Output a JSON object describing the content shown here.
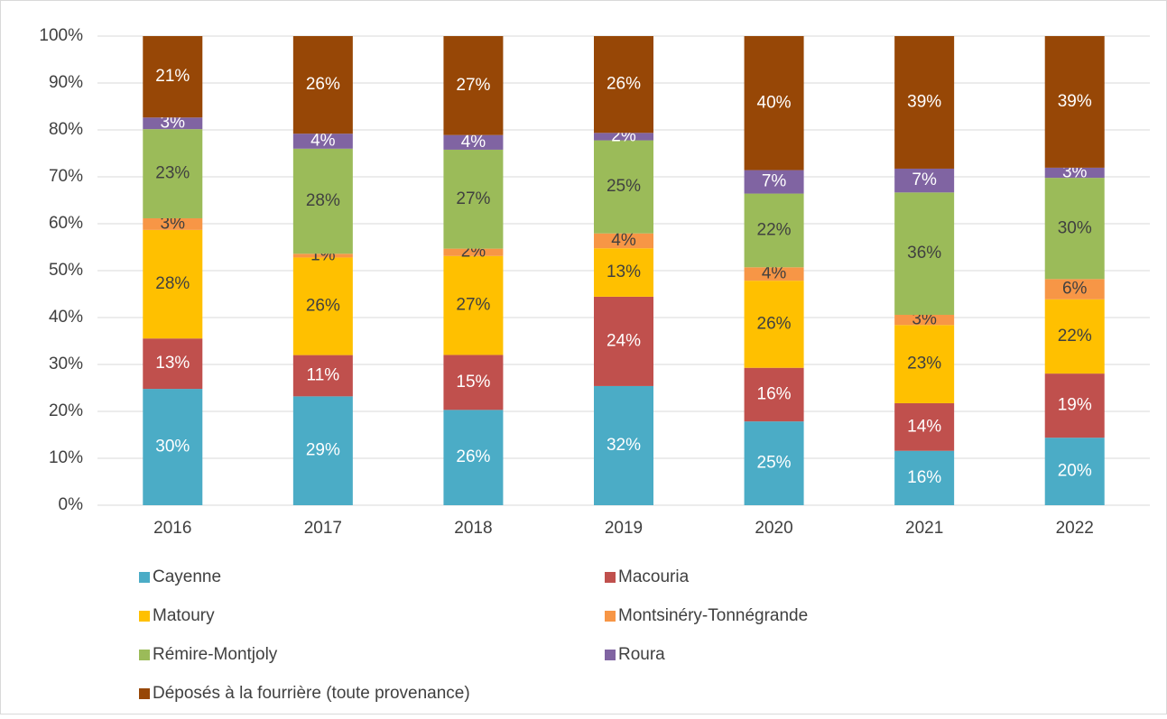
{
  "chart_data": {
    "type": "bar",
    "stacking": "percent",
    "categories": [
      "2016",
      "2017",
      "2018",
      "2019",
      "2020",
      "2021",
      "2022"
    ],
    "series": [
      {
        "name": "Cayenne",
        "color": "#4bacc6",
        "label_color": "#ffffff",
        "values": [
          30,
          29,
          26,
          32,
          25,
          16,
          20
        ],
        "value_labels": [
          "30%",
          "29%",
          "26%",
          "32%",
          "25%",
          "16%",
          "20%"
        ]
      },
      {
        "name": "Macouria",
        "color": "#c0504d",
        "label_color": "#ffffff",
        "values": [
          13,
          11,
          15,
          24,
          16,
          14,
          19
        ],
        "value_labels": [
          "13%",
          "11%",
          "15%",
          "24%",
          "16%",
          "14%",
          "19%"
        ]
      },
      {
        "name": "Matoury",
        "color": "#ffc000",
        "label_color": "#404040",
        "values": [
          28,
          26,
          27,
          13,
          26,
          23,
          22
        ],
        "value_labels": [
          "28%",
          "26%",
          "27%",
          "13%",
          "26%",
          "23%",
          "22%"
        ]
      },
      {
        "name": "Montsinéry-Tonnégrande",
        "color": "#f79646",
        "label_color": "#404040",
        "values": [
          3,
          1,
          2,
          4,
          4,
          3,
          6
        ],
        "value_labels": [
          "3%",
          "1%",
          "2%",
          "4%",
          "4%",
          "3%",
          "6%"
        ]
      },
      {
        "name": "Rémire-Montjoly",
        "color": "#9bbb59",
        "label_color": "#404040",
        "values": [
          23,
          28,
          27,
          25,
          22,
          36,
          30
        ],
        "value_labels": [
          "23%",
          "28%",
          "27%",
          "25%",
          "22%",
          "36%",
          "30%"
        ]
      },
      {
        "name": "Roura",
        "color": "#8064a2",
        "label_color": "#ffffff",
        "values": [
          3,
          4,
          4,
          2,
          7,
          7,
          3
        ],
        "value_labels": [
          "3%",
          "4%",
          "4%",
          "2%",
          "7%",
          "7%",
          "3%"
        ]
      },
      {
        "name": "Déposés à la fourrière (toute provenance)",
        "color": "#974706",
        "label_color": "#ffffff",
        "values": [
          21,
          26,
          27,
          26,
          40,
          39,
          39
        ],
        "value_labels": [
          "21%",
          "26%",
          "27%",
          "26%",
          "40%",
          "39%",
          "39%"
        ]
      }
    ],
    "ylim": [
      0,
      100
    ],
    "yticks": [
      {
        "value": 0,
        "label": "0%"
      },
      {
        "value": 10,
        "label": "10%"
      },
      {
        "value": 20,
        "label": "20%"
      },
      {
        "value": 30,
        "label": "30%"
      },
      {
        "value": 40,
        "label": "40%"
      },
      {
        "value": 50,
        "label": "50%"
      },
      {
        "value": 60,
        "label": "60%"
      },
      {
        "value": 70,
        "label": "70%"
      },
      {
        "value": 80,
        "label": "80%"
      },
      {
        "value": 90,
        "label": "90%"
      },
      {
        "value": 100,
        "label": "100%"
      }
    ],
    "grid": true,
    "legend": "bottom"
  }
}
